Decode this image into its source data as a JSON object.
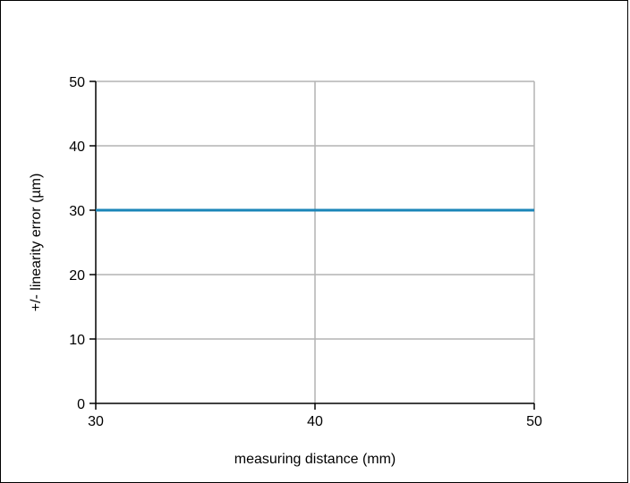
{
  "chart_data": {
    "type": "line",
    "title": "",
    "xlabel": "measuring distance (mm)",
    "ylabel": "+/- linearity error (µm)",
    "xlim": [
      30,
      50
    ],
    "ylim": [
      0,
      50
    ],
    "x_ticks": [
      30,
      40,
      50
    ],
    "y_ticks": [
      0,
      10,
      20,
      30,
      40,
      50
    ],
    "grid": true,
    "legend": "none",
    "series": [
      {
        "x": [
          30,
          50
        ],
        "y": [
          30,
          30
        ],
        "color": "#1a85b8"
      }
    ],
    "colors": {
      "series": "#1a85b8",
      "grid": "#b3b3b3",
      "axis": "#000000"
    }
  }
}
